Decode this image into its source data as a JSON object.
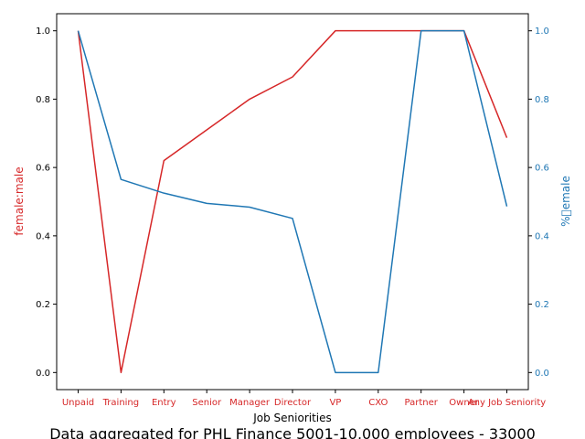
{
  "chart_data": {
    "type": "line",
    "categories": [
      "Unpaid",
      "Training",
      "Entry",
      "Senior",
      "Manager",
      "Director",
      "VP",
      "CXO",
      "Partner",
      "Owner",
      "Any Job Seniority"
    ],
    "xlabel": "Job Seniorities",
    "caption": "Data aggregated for PHL Finance 5001-10,000 employees - 33000",
    "left_axis": {
      "label": "female:male",
      "color": "#d62728",
      "ylim": [
        -0.05,
        1.05
      ],
      "ticks": [
        "0.0",
        "0.2",
        "0.4",
        "0.6",
        "0.8",
        "1.0"
      ]
    },
    "right_axis": {
      "label": "%\u0000emale",
      "color": "#1f77b4",
      "ylim": [
        -0.05,
        1.05
      ],
      "ticks": [
        "0.0",
        "0.2",
        "0.4",
        "0.6",
        "0.8",
        "1.0"
      ]
    },
    "series": [
      {
        "axis": "left",
        "color": "#d62728",
        "values": [
          1.0,
          0.0,
          0.62,
          0.71,
          0.8,
          0.865,
          1.0,
          1.0,
          1.0,
          1.0,
          0.687
        ]
      },
      {
        "axis": "right",
        "color": "#1f77b4",
        "values": [
          1.0,
          0.565,
          0.525,
          0.495,
          0.484,
          0.451,
          0.0,
          0.0,
          1.0,
          1.0,
          0.486
        ]
      }
    ],
    "grid": false
  }
}
